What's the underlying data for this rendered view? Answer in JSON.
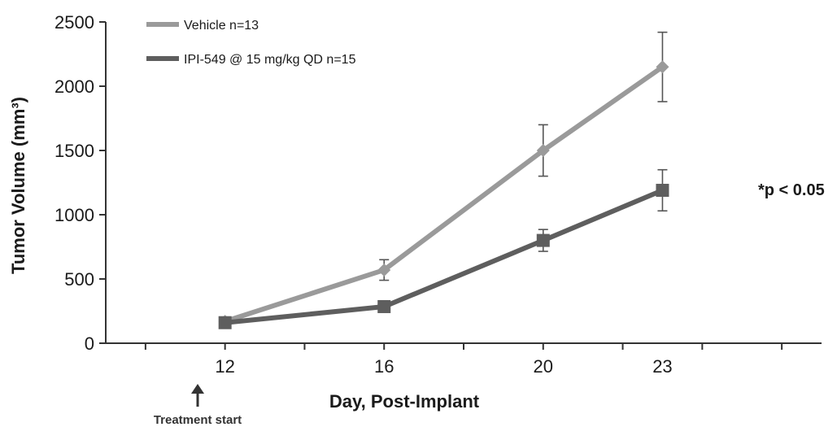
{
  "chart_data": {
    "type": "line",
    "x": [
      12,
      16,
      20,
      23
    ],
    "xlim": [
      9,
      27
    ],
    "ylim": [
      0,
      2500
    ],
    "x_ticks": [
      12,
      16,
      20,
      23
    ],
    "y_ticks": [
      0,
      500,
      1000,
      1500,
      2000,
      2500
    ],
    "xlabel": "Day, Post-Implant",
    "ylabel": "Tumor Volume (mm³)",
    "grid": false,
    "legend_position": "top-left",
    "series": [
      {
        "name": "Vehicle n=13",
        "color": "#9a9a9a",
        "marker": "diamond",
        "values": [
          170,
          570,
          1500,
          2150
        ],
        "errors": [
          20,
          80,
          200,
          270
        ]
      },
      {
        "name": "IPI-549 @ 15 mg/kg QD n=15",
        "color": "#5e5e5e",
        "marker": "square",
        "values": [
          160,
          285,
          800,
          1190
        ],
        "errors": [
          15,
          25,
          85,
          160
        ]
      }
    ],
    "annotations": [
      {
        "text": "*p < 0.05",
        "x": 23,
        "y": 1190
      },
      {
        "text": "Treatment start",
        "x": 12,
        "arrow": "up"
      }
    ]
  }
}
